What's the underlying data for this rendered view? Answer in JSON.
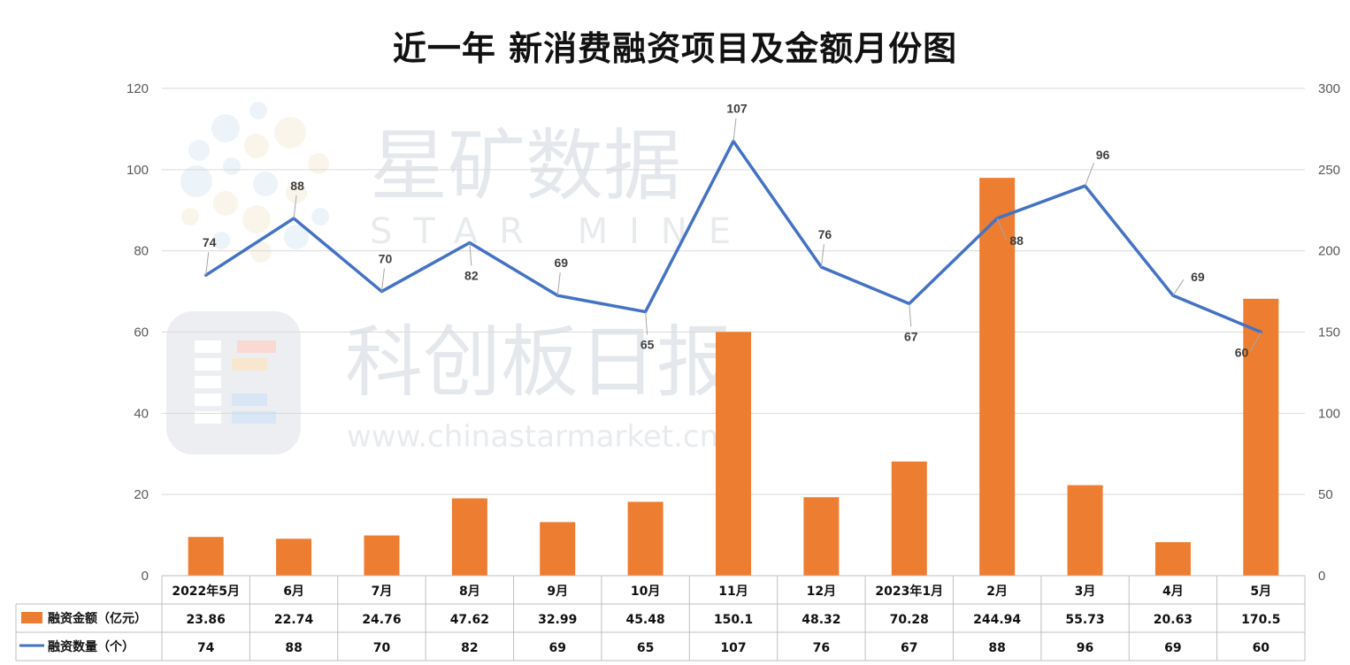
{
  "chart_data": {
    "type": "bar",
    "title": "近一年 新消费融资项目及金额月份图",
    "categories": [
      "2022年5月",
      "6月",
      "7月",
      "8月",
      "9月",
      "10月",
      "11月",
      "12月",
      "2023年1月",
      "2月",
      "3月",
      "4月",
      "5月"
    ],
    "series": [
      {
        "name": "融资金额（亿元）",
        "type": "bar",
        "axis": "right",
        "color": "#ED7D31",
        "values": [
          23.86,
          22.74,
          24.76,
          47.62,
          32.99,
          45.48,
          150.1,
          48.32,
          70.28,
          244.94,
          55.73,
          20.63,
          170.5
        ]
      },
      {
        "name": "融资数量（个）",
        "type": "line",
        "axis": "left",
        "color": "#4472C4",
        "values": [
          74,
          88,
          70,
          82,
          69,
          65,
          107,
          76,
          67,
          88,
          96,
          69,
          60
        ]
      }
    ],
    "ylim_left": [
      0,
      120
    ],
    "yticks_left": [
      0,
      20,
      40,
      60,
      80,
      100,
      120
    ],
    "ylim_right": [
      0,
      300
    ],
    "yticks_right": [
      0,
      50,
      100,
      150,
      200,
      250,
      300
    ],
    "grid": true,
    "data_table": true
  },
  "watermark": {
    "cn_top": "星矿数据",
    "en_top": "STAR MINE",
    "cn_mid": "科创板日报",
    "url": "www.chinastarmarket.cn"
  }
}
